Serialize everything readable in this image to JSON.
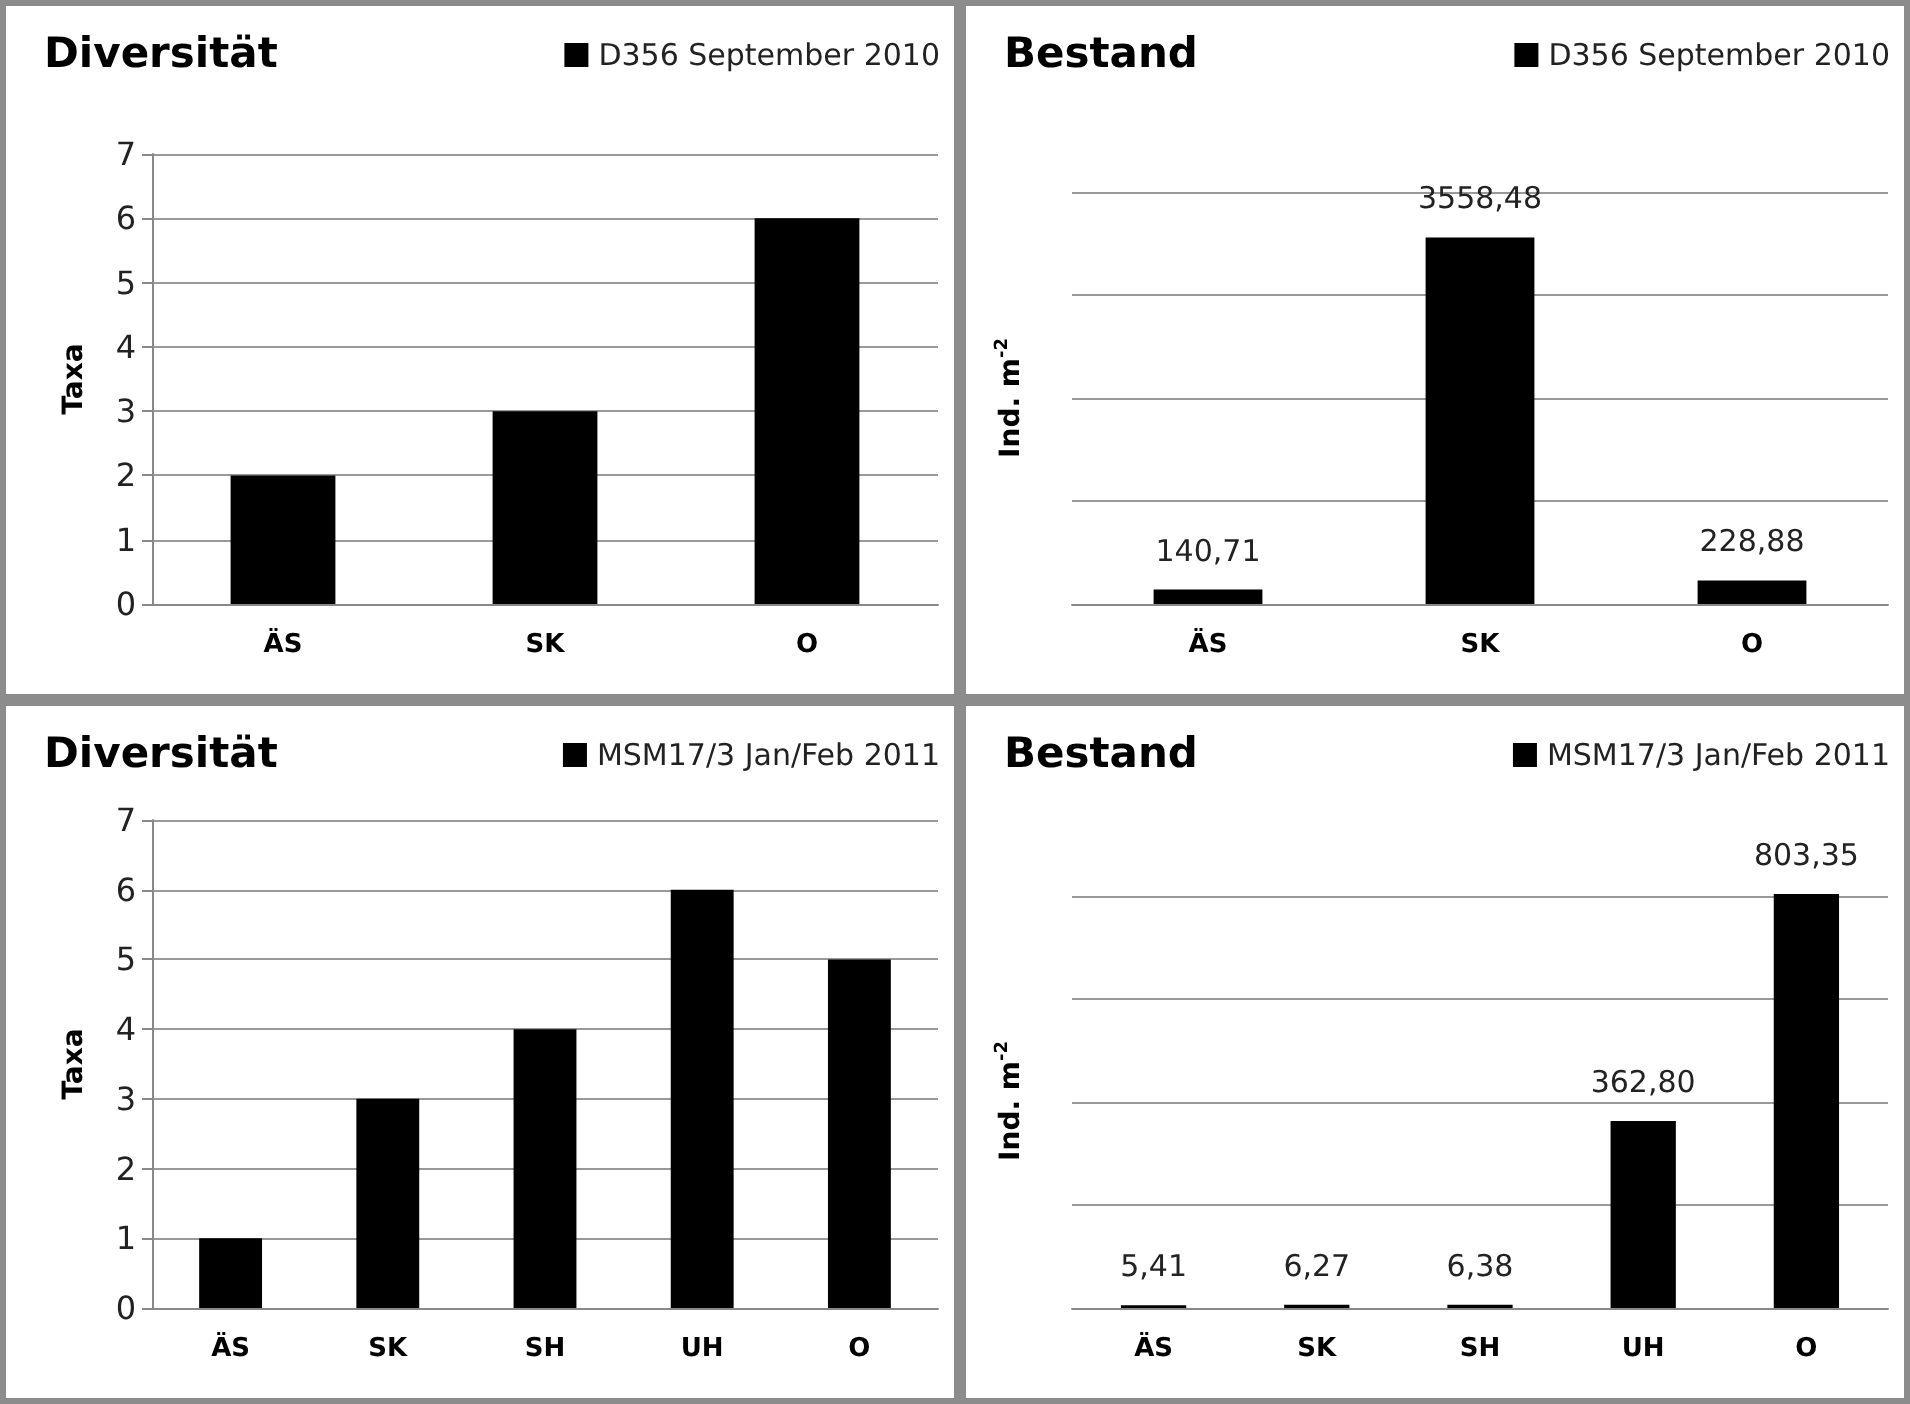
{
  "chart_data": [
    {
      "type": "bar",
      "title": "Diversität",
      "ylabel": "Taxa",
      "categories": [
        "ÄS",
        "SK",
        "O"
      ],
      "legend": "top right",
      "grid": "y",
      "ylim": [
        0,
        7
      ],
      "yticks": [
        0,
        1,
        2,
        3,
        4,
        5,
        6,
        7
      ],
      "series": [
        {
          "name": "D356 September 2010",
          "color": "#000000",
          "values": [
            2,
            3,
            6
          ]
        }
      ]
    },
    {
      "type": "bar",
      "title": "Bestand",
      "ylabel": "Ind. m$^{-2}$",
      "categories": [
        "ÄS",
        "SK",
        "O"
      ],
      "legend": "top right",
      "grid": "y",
      "tick_labels": "x",
      "ylim": [
        0,
        4000
      ],
      "yticks": [
        {
          "value": 0,
          "label": null
        },
        {
          "value": 1000,
          "label": null
        },
        {
          "value": 2000,
          "label": null
        },
        {
          "value": 3000,
          "label": null
        },
        {
          "value": 4000,
          "label": null
        }
      ],
      "series": [
        {
          "name": "D356 September 2010",
          "color": "#000000",
          "values": [
            140.71,
            3558.48,
            228.88
          ],
          "value_labels": [
            "140,71",
            "3558,48",
            "228,88"
          ]
        }
      ]
    },
    {
      "type": "bar",
      "title": "Diversität",
      "ylabel": "Taxa",
      "categories": [
        "ÄS",
        "SK",
        "SH",
        "UH",
        "O"
      ],
      "legend": "top right",
      "grid": "y",
      "ylim": [
        0,
        7
      ],
      "yticks": [
        0,
        1,
        2,
        3,
        4,
        5,
        6,
        7
      ],
      "series": [
        {
          "name": "MSM17/3 Jan/Feb 2011",
          "color": "#000000",
          "values": [
            1,
            3,
            4,
            6,
            5
          ]
        }
      ]
    },
    {
      "type": "bar",
      "title": "Bestand",
      "ylabel": "Ind. m$^{-2}$",
      "categories": [
        "ÄS",
        "SK",
        "SH",
        "UH",
        "O"
      ],
      "legend": "top right",
      "grid": "y",
      "tick_labels": "x",
      "yticks": [
        {
          "value": 0,
          "label": null
        },
        {
          "value": 200,
          "label": null
        },
        {
          "value": 400,
          "label": null
        },
        {
          "value": 600,
          "label": null
        },
        {
          "value": 800,
          "label": null
        }
      ],
      "series": [
        {
          "name": "MSM17/3 Jan/Feb 2011",
          "color": "#000000",
          "values": [
            5.41,
            6.27,
            6.38,
            362.8,
            803.35
          ],
          "value_labels": [
            "5,41",
            "6,27",
            "6,38",
            "362,80",
            "803,35"
          ]
        }
      ]
    }
  ]
}
